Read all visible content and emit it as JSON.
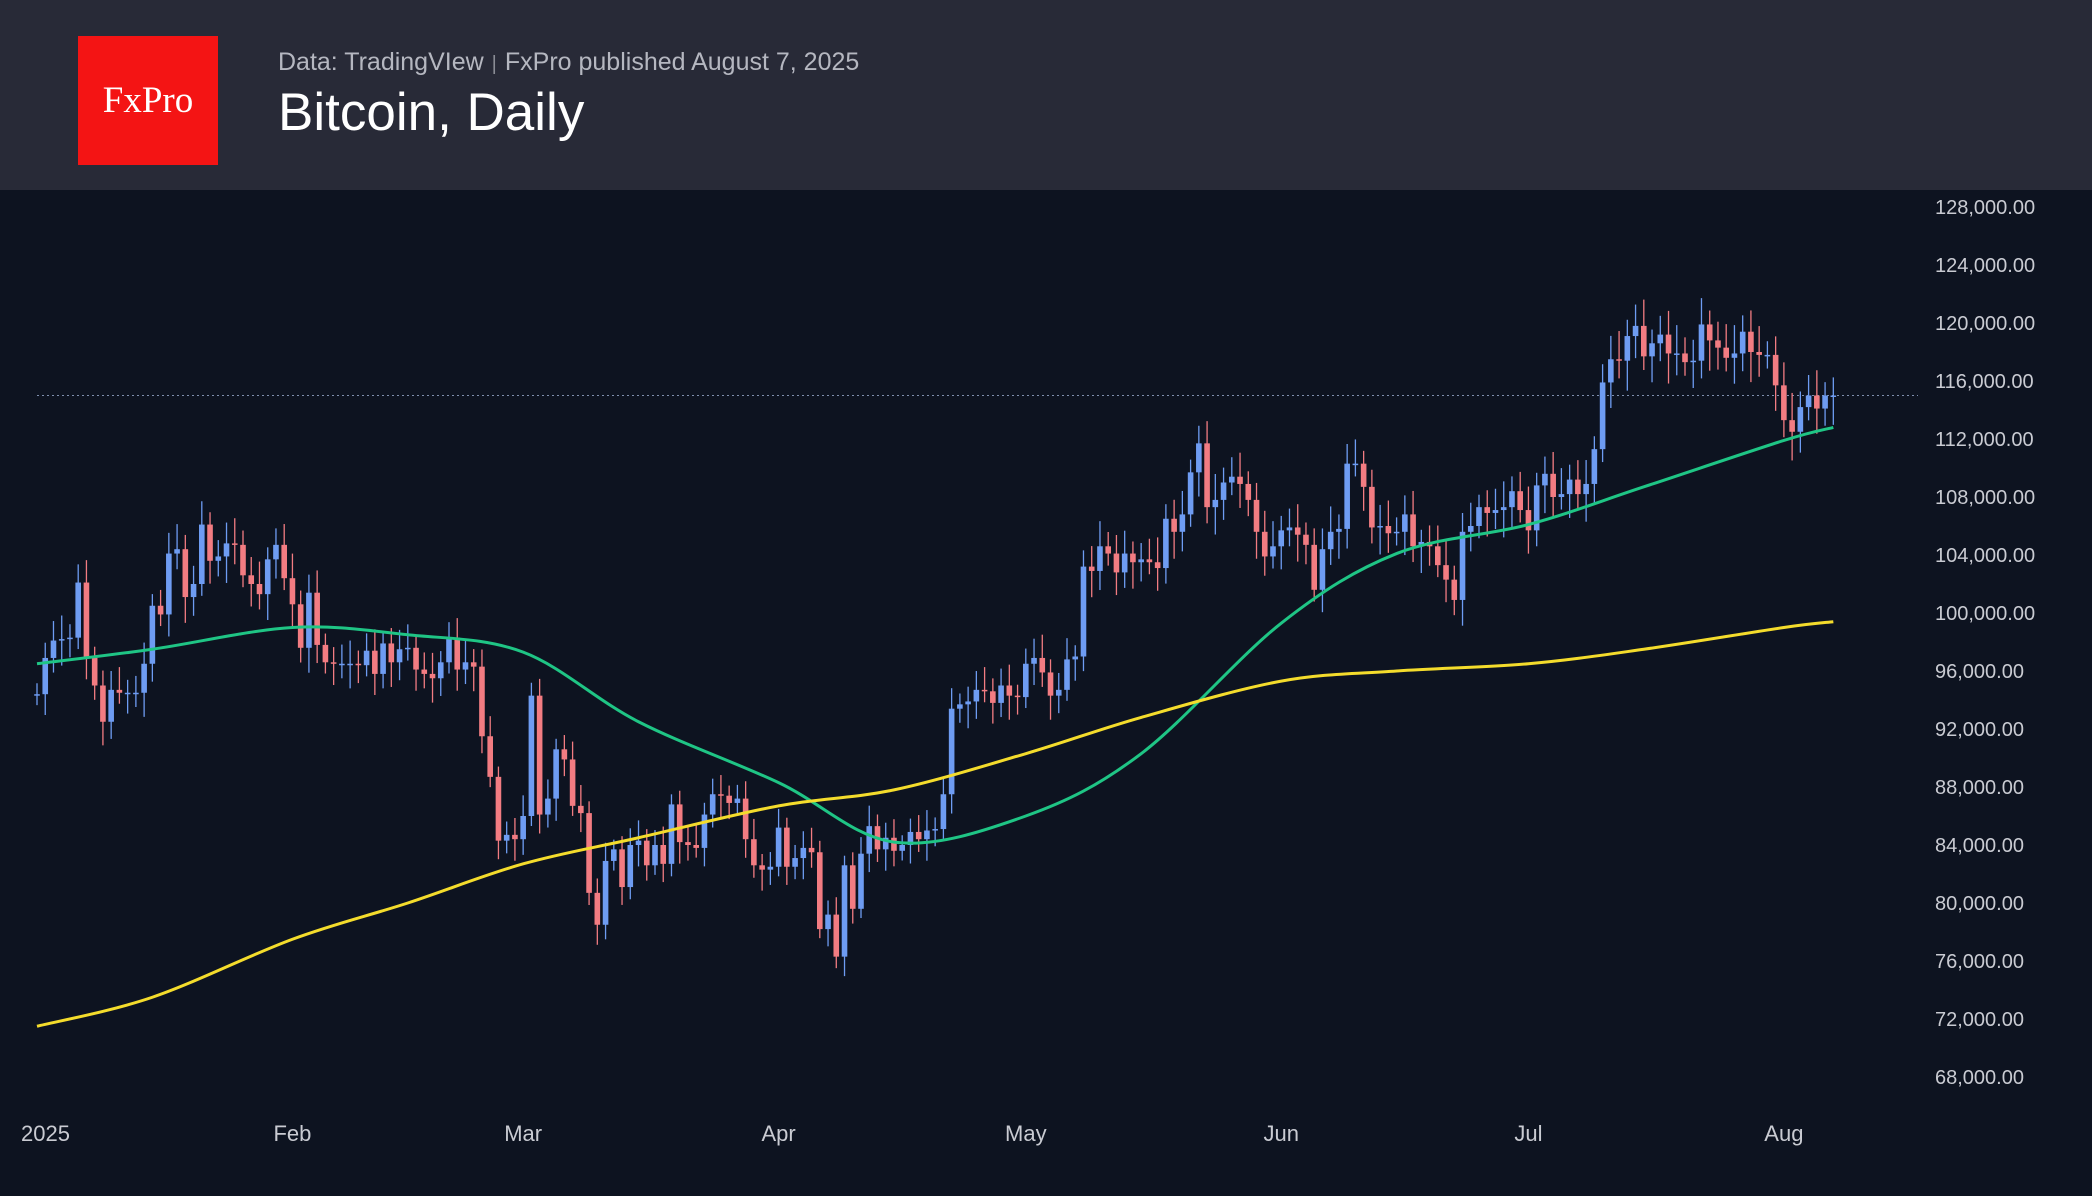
{
  "header": {
    "logo": "FxPro",
    "source": "Data: TradingVIew",
    "published": "FxPro published August 7, 2025",
    "title": "Bitcoin, Daily"
  },
  "colors": {
    "up": "#6e9cf2",
    "down": "#f27c82",
    "ma_short": "#1fc585",
    "ma_long": "#f4dc2c",
    "background": "#0d1320",
    "header": "#282a37"
  },
  "chart_data": {
    "type": "candlestick",
    "title": "Bitcoin, Daily",
    "start_date": "2025-01-01",
    "first_open": 94400,
    "closes": [
      94400,
      96900,
      98100,
      98200,
      98300,
      102100,
      96900,
      95000,
      92500,
      94700,
      94500,
      94500,
      94500,
      96500,
      100500,
      99900,
      104100,
      104400,
      101100,
      102000,
      106100,
      103600,
      103900,
      104800,
      104700,
      102600,
      102000,
      101300,
      103700,
      104700,
      102400,
      100600,
      97600,
      101400,
      97800,
      96600,
      96500,
      96500,
      96500,
      96400,
      97400,
      95800,
      97900,
      96600,
      97500,
      97600,
      96100,
      95800,
      95500,
      96600,
      98300,
      96100,
      96600,
      96300,
      91500,
      88700,
      84300,
      84700,
      84400,
      86000,
      94300,
      86100,
      87200,
      90600,
      89900,
      86700,
      86200,
      80700,
      78500,
      82900,
      83700,
      81100,
      84000,
      84300,
      82600,
      84000,
      82700,
      86800,
      84200,
      84000,
      83800,
      86100,
      87500,
      87400,
      86900,
      87200,
      84400,
      82600,
      82300,
      82500,
      85200,
      82500,
      83100,
      83800,
      83500,
      78200,
      79200,
      76300,
      82600,
      79600,
      83400,
      85300,
      83700,
      84500,
      83600,
      84000,
      84900,
      84400,
      85000,
      85100,
      87500,
      93400,
      93700,
      93900,
      94700,
      94600,
      93800,
      95000,
      94300,
      94200,
      96500,
      96900,
      95900,
      94300,
      94700,
      96800,
      97000,
      103200,
      102900,
      104600,
      104100,
      102800,
      104100,
      103500,
      103700,
      103500,
      103100,
      106500,
      105600,
      106800,
      109700,
      111700,
      107300,
      107800,
      109000,
      109400,
      108900,
      107800,
      105600,
      103900,
      104600,
      105700,
      105900,
      105400,
      104700,
      101600,
      104400,
      105600,
      105800,
      110300,
      110300,
      108700,
      105900,
      106000,
      105500,
      105600,
      106800,
      104600,
      104900,
      104600,
      103300,
      102300,
      100900,
      105600,
      106000,
      107300,
      106900,
      107100,
      107300,
      108400,
      107100,
      105700,
      108800,
      109600,
      108000,
      108200,
      109200,
      108200,
      108900,
      111300,
      115900,
      117500,
      117400,
      119100,
      119800,
      117700,
      118600,
      119200,
      117900,
      117900,
      117300,
      117400,
      119900,
      118800,
      118300,
      117600,
      117900,
      119400,
      118000,
      117800,
      117800,
      115700,
      113300,
      112500,
      114200,
      115000,
      114100,
      115000,
      115000
    ],
    "last_price": 115000,
    "series": [
      {
        "type": "line",
        "color": "#1fc585",
        "points": [
          [
            "2025-01-01",
            96500
          ],
          [
            "2025-01-15",
            97500
          ],
          [
            "2025-02-01",
            99000
          ],
          [
            "2025-02-15",
            98500
          ],
          [
            "2025-03-01",
            97300
          ],
          [
            "2025-03-15",
            92500
          ],
          [
            "2025-04-01",
            88300
          ],
          [
            "2025-04-15",
            84200
          ],
          [
            "2025-05-01",
            86000
          ],
          [
            "2025-05-15",
            90300
          ],
          [
            "2025-06-01",
            99300
          ],
          [
            "2025-06-15",
            104100
          ],
          [
            "2025-07-01",
            106100
          ],
          [
            "2025-07-15",
            108700
          ],
          [
            "2025-08-01",
            111900
          ],
          [
            "2025-08-07",
            112800
          ]
        ]
      },
      {
        "type": "line",
        "color": "#f4dc2c",
        "points": [
          [
            "2025-01-01",
            71500
          ],
          [
            "2025-01-15",
            73500
          ],
          [
            "2025-02-01",
            77500
          ],
          [
            "2025-02-15",
            80000
          ],
          [
            "2025-03-01",
            82700
          ],
          [
            "2025-03-15",
            84500
          ],
          [
            "2025-04-01",
            86700
          ],
          [
            "2025-04-15",
            87800
          ],
          [
            "2025-05-01",
            90300
          ],
          [
            "2025-05-15",
            92800
          ],
          [
            "2025-06-01",
            95300
          ],
          [
            "2025-06-15",
            96000
          ],
          [
            "2025-07-01",
            96500
          ],
          [
            "2025-07-15",
            97500
          ],
          [
            "2025-08-01",
            99000
          ],
          [
            "2025-08-07",
            99400
          ]
        ]
      }
    ],
    "ylim": [
      66000,
      130000
    ],
    "y_ticks": [
      "128,000.00",
      "124,000.00",
      "120,000.00",
      "116,000.00",
      "112,000.00",
      "108,000.00",
      "104,000.00",
      "100,000.00",
      "96,000.00",
      "92,000.00",
      "88,000.00",
      "84,000.00",
      "80,000.00",
      "76,000.00",
      "72,000.00",
      "68,000.00"
    ],
    "x_ticks": [
      {
        "label": "2025",
        "date": "2025-01-01"
      },
      {
        "label": "Feb",
        "date": "2025-02-01"
      },
      {
        "label": "Mar",
        "date": "2025-03-01"
      },
      {
        "label": "Apr",
        "date": "2025-04-01"
      },
      {
        "label": "May",
        "date": "2025-05-01"
      },
      {
        "label": "Jun",
        "date": "2025-06-01"
      },
      {
        "label": "Jul",
        "date": "2025-07-01"
      },
      {
        "label": "Aug",
        "date": "2025-08-01"
      }
    ],
    "grid": false
  }
}
